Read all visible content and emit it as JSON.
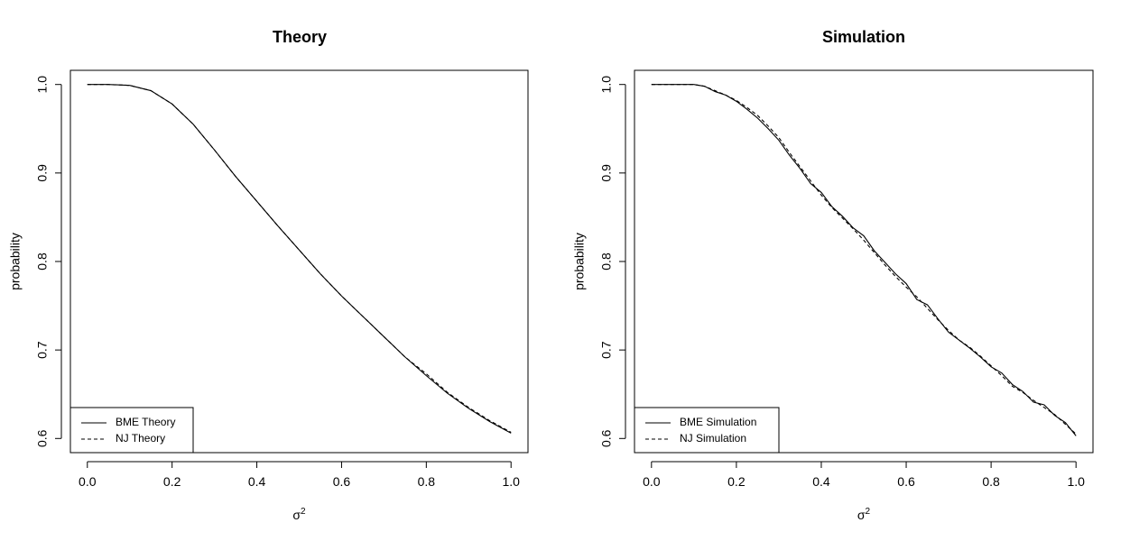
{
  "chart_data": [
    {
      "type": "line",
      "title": "Theory",
      "xlabel": "σ",
      "xlabel_sup": "2",
      "ylabel": "probability",
      "xlim": [
        0.0,
        1.0
      ],
      "ylim": [
        0.6,
        1.0
      ],
      "xticks": [
        0.0,
        0.2,
        0.4,
        0.6,
        0.8,
        1.0
      ],
      "yticks": [
        0.6,
        0.7,
        0.8,
        0.9,
        1.0
      ],
      "xtick_labels": [
        "0.0",
        "0.2",
        "0.4",
        "0.6",
        "0.8",
        "1.0"
      ],
      "ytick_labels": [
        "0.6",
        "0.7",
        "0.8",
        "0.9",
        "1.0"
      ],
      "grid": false,
      "legend_position": "bottom-left",
      "x": [
        0.0,
        0.05,
        0.1,
        0.15,
        0.2,
        0.25,
        0.3,
        0.35,
        0.4,
        0.45,
        0.5,
        0.55,
        0.6,
        0.65,
        0.7,
        0.75,
        0.8,
        0.85,
        0.9,
        0.95,
        1.0
      ],
      "series": [
        {
          "name": "BME Theory",
          "line_style": "solid",
          "values": [
            1.0,
            1.0,
            0.999,
            0.993,
            0.978,
            0.955,
            0.926,
            0.896,
            0.868,
            0.84,
            0.813,
            0.786,
            0.761,
            0.738,
            0.715,
            0.692,
            0.671,
            0.651,
            0.634,
            0.619,
            0.606
          ]
        },
        {
          "name": "NJ Theory",
          "line_style": "dashed",
          "values": [
            1.0,
            1.0,
            0.999,
            0.993,
            0.978,
            0.955,
            0.926,
            0.896,
            0.868,
            0.84,
            0.813,
            0.786,
            0.761,
            0.738,
            0.715,
            0.692,
            0.673,
            0.652,
            0.635,
            0.62,
            0.607
          ]
        }
      ]
    },
    {
      "type": "line",
      "title": "Simulation",
      "xlabel": "σ",
      "xlabel_sup": "2",
      "ylabel": "probability",
      "xlim": [
        0.0,
        1.0
      ],
      "ylim": [
        0.6,
        1.0
      ],
      "xticks": [
        0.0,
        0.2,
        0.4,
        0.6,
        0.8,
        1.0
      ],
      "yticks": [
        0.6,
        0.7,
        0.8,
        0.9,
        1.0
      ],
      "xtick_labels": [
        "0.0",
        "0.2",
        "0.4",
        "0.6",
        "0.8",
        "1.0"
      ],
      "ytick_labels": [
        "0.6",
        "0.7",
        "0.8",
        "0.9",
        "1.0"
      ],
      "grid": false,
      "legend_position": "bottom-left",
      "x": [
        0.0,
        0.05,
        0.1,
        0.125,
        0.15,
        0.175,
        0.2,
        0.225,
        0.25,
        0.275,
        0.3,
        0.325,
        0.35,
        0.375,
        0.4,
        0.425,
        0.45,
        0.475,
        0.5,
        0.525,
        0.55,
        0.575,
        0.6,
        0.625,
        0.65,
        0.675,
        0.7,
        0.725,
        0.75,
        0.775,
        0.8,
        0.825,
        0.85,
        0.875,
        0.9,
        0.925,
        0.95,
        0.975,
        1.0
      ],
      "series": [
        {
          "name": "BME Simulation",
          "line_style": "solid",
          "values": [
            1.0,
            1.0,
            1.0,
            0.998,
            0.992,
            0.988,
            0.981,
            0.972,
            0.962,
            0.95,
            0.937,
            0.92,
            0.905,
            0.888,
            0.878,
            0.862,
            0.851,
            0.838,
            0.829,
            0.812,
            0.799,
            0.786,
            0.775,
            0.757,
            0.751,
            0.735,
            0.72,
            0.711,
            0.702,
            0.692,
            0.681,
            0.674,
            0.661,
            0.653,
            0.641,
            0.638,
            0.626,
            0.618,
            0.603
          ]
        },
        {
          "name": "NJ Simulation",
          "line_style": "dashed",
          "values": [
            1.0,
            1.0,
            1.0,
            0.998,
            0.993,
            0.988,
            0.982,
            0.974,
            0.965,
            0.953,
            0.94,
            0.923,
            0.907,
            0.891,
            0.875,
            0.861,
            0.849,
            0.837,
            0.824,
            0.81,
            0.796,
            0.783,
            0.771,
            0.76,
            0.747,
            0.734,
            0.722,
            0.711,
            0.703,
            0.693,
            0.682,
            0.671,
            0.659,
            0.652,
            0.643,
            0.635,
            0.627,
            0.616,
            0.605
          ]
        }
      ]
    }
  ]
}
